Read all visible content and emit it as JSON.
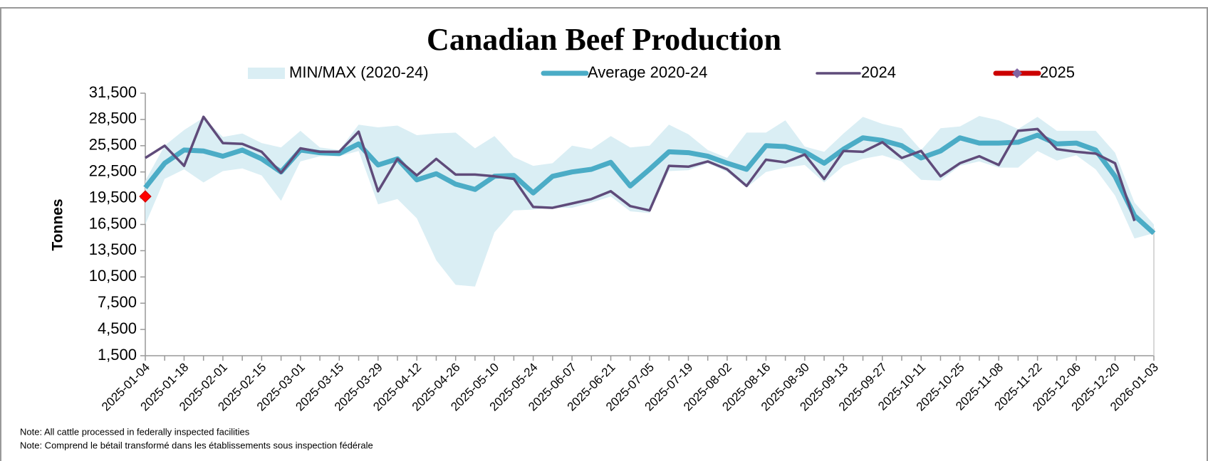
{
  "chart_data": {
    "type": "line",
    "title": "Canadian Beef Production",
    "y_label": "Tonnes",
    "notes": [
      "Note: All cattle processed in federally inspected facilities",
      "Note: Comprend le bétail transformé dans les établissements sous inspection fédérale"
    ],
    "categories": [
      "2025-01-04",
      null,
      "2025-01-18",
      null,
      "2025-02-01",
      null,
      "2025-02-15",
      null,
      "2025-03-01",
      null,
      "2025-03-15",
      null,
      "2025-03-29",
      null,
      "2025-04-12",
      null,
      "2025-04-26",
      null,
      "2025-05-10",
      null,
      "2025-05-24",
      null,
      "2025-06-07",
      null,
      "2025-06-21",
      null,
      "2025-07-05",
      null,
      "2025-07-19",
      null,
      "2025-08-02",
      null,
      "2025-08-16",
      null,
      "2025-08-30",
      null,
      "2025-09-13",
      null,
      "2025-09-27",
      null,
      "2025-10-11",
      null,
      "2025-10-25",
      null,
      "2025-11-08",
      null,
      "2025-11-22",
      null,
      "2025-12-06",
      null,
      "2025-12-20",
      null,
      "2026-01-03"
    ],
    "ylim": [
      1500,
      31500
    ],
    "yticks": [
      {
        "value": 1500,
        "label": "1,500"
      },
      {
        "value": 4500,
        "label": "4,500"
      },
      {
        "value": 7500,
        "label": "7,500"
      },
      {
        "value": 10500,
        "label": "10,500"
      },
      {
        "value": 13500,
        "label": "13,500"
      },
      {
        "value": 16500,
        "label": "16,500"
      },
      {
        "value": 19500,
        "label": "19,500"
      },
      {
        "value": 22500,
        "label": "22,500"
      },
      {
        "value": 25500,
        "label": "25,500"
      },
      {
        "value": 28500,
        "label": "28,500"
      },
      {
        "value": 31500,
        "label": "31,500"
      }
    ],
    "series": [
      {
        "name": "MIN/MAX (2020-24)",
        "type": "band",
        "color": "#daeef4",
        "high": [
          21500,
          25500,
          27300,
          28700,
          26500,
          26900,
          25800,
          25300,
          27200,
          25300,
          25000,
          27900,
          27600,
          27800,
          26700,
          26900,
          27000,
          25200,
          26600,
          24200,
          23200,
          23500,
          25500,
          25100,
          26600,
          25300,
          25500,
          27900,
          26800,
          25000,
          24100,
          27000,
          27000,
          28400,
          25400,
          24800,
          26900,
          28800,
          28000,
          27500,
          25000,
          27500,
          27700,
          28900,
          28400,
          27400,
          28800,
          27200,
          27200,
          27200,
          24700,
          19000,
          16500
        ],
        "low": [
          16500,
          21700,
          22800,
          21300,
          22600,
          22900,
          22100,
          19200,
          23700,
          24300,
          24300,
          24900,
          18800,
          19400,
          17200,
          12400,
          9600,
          9400,
          15600,
          18100,
          18200,
          18400,
          18400,
          19000,
          19700,
          18000,
          17800,
          22600,
          22700,
          23500,
          22500,
          20700,
          22500,
          23000,
          23300,
          21300,
          23200,
          24000,
          24400,
          23700,
          21600,
          21500,
          23200,
          23700,
          23000,
          23000,
          24900,
          23800,
          24400,
          22800,
          19800,
          14900,
          15500
        ]
      },
      {
        "name": "Average 2020-24",
        "type": "line",
        "color": "#4bacc6",
        "width": 7,
        "values": [
          20700,
          23500,
          25000,
          24900,
          24300,
          25000,
          24000,
          22500,
          25000,
          24700,
          24600,
          25700,
          23300,
          24000,
          21600,
          22300,
          21100,
          20500,
          22000,
          22100,
          20100,
          22000,
          22500,
          22800,
          23600,
          20900,
          22800,
          24800,
          24700,
          24300,
          23500,
          22800,
          25500,
          25400,
          24800,
          23500,
          25100,
          26400,
          26100,
          25500,
          24100,
          24900,
          26400,
          25800,
          25800,
          25900,
          26700,
          25700,
          25800,
          25000,
          22000,
          17500,
          15500
        ]
      },
      {
        "name": "2024",
        "type": "line",
        "color": "#5f4b7a",
        "width": 3.5,
        "values": [
          24100,
          25500,
          23200,
          28800,
          25800,
          25700,
          24800,
          22400,
          25200,
          24800,
          24800,
          27100,
          20300,
          24000,
          22100,
          24000,
          22200,
          22200,
          22000,
          21700,
          18500,
          18400,
          18900,
          19400,
          20300,
          18600,
          18100,
          23200,
          23100,
          23700,
          22800,
          20900,
          23900,
          23600,
          24500,
          21700,
          24900,
          24800,
          25900,
          24100,
          24900,
          22000,
          23500,
          24300,
          23300,
          27200,
          27400,
          25100,
          24800,
          24600,
          23500,
          16900,
          null
        ]
      },
      {
        "name": "2025",
        "type": "line",
        "color": "#cc0000",
        "marker_color": "#ff0000",
        "width": 7,
        "values": [
          19700,
          null,
          null,
          null,
          null,
          null,
          null,
          null,
          null,
          null,
          null,
          null,
          null,
          null,
          null,
          null,
          null,
          null,
          null,
          null,
          null,
          null,
          null,
          null,
          null,
          null,
          null,
          null,
          null,
          null,
          null,
          null,
          null,
          null,
          null,
          null,
          null,
          null,
          null,
          null,
          null,
          null,
          null,
          null,
          null,
          null,
          null,
          null,
          null,
          null,
          null,
          null,
          null
        ]
      }
    ]
  }
}
